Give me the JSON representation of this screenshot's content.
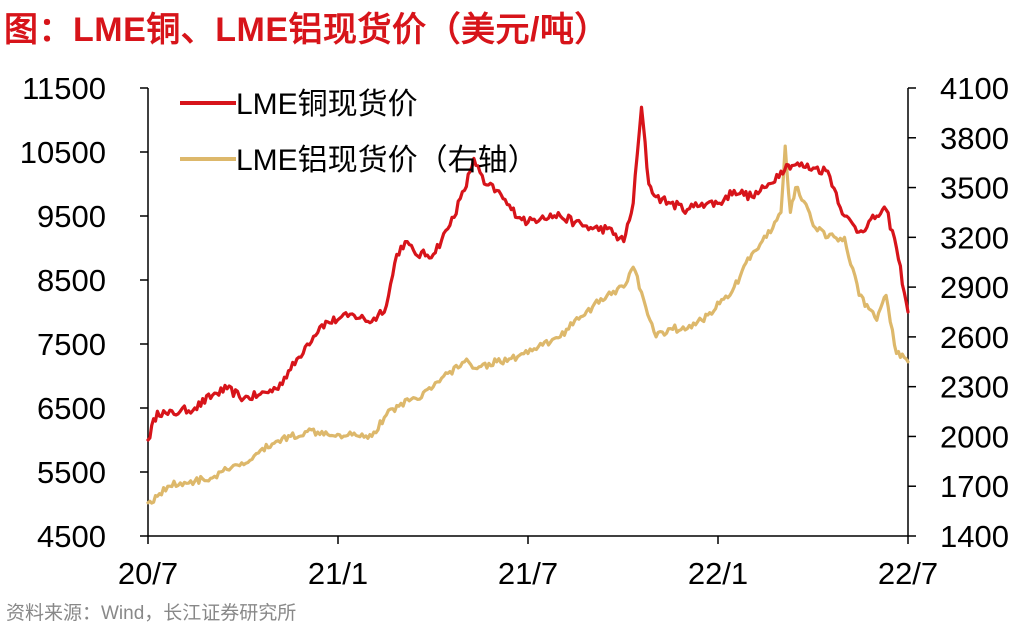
{
  "figure_title": "图：LME铜、LME铝现货价（美元/吨）",
  "source": "资料来源：Wind，长江证券研究所",
  "colors": {
    "copper": "#d7141a",
    "aluminum": "#ddb86b",
    "axis": "#000000"
  },
  "chart_data": {
    "type": "line",
    "title": "图：LME铜、LME铝现货价（美元/吨）",
    "x_tick_labels": [
      "20/7",
      "21/1",
      "21/7",
      "22/1",
      "22/7"
    ],
    "x_range": [
      "2020-07",
      "2022-07"
    ],
    "y_left": {
      "range": [
        4500,
        11500
      ],
      "ticks": [
        4500,
        5500,
        6500,
        7500,
        8500,
        9500,
        10500,
        11500
      ]
    },
    "y_right": {
      "range": [
        1400,
        4100
      ],
      "ticks": [
        1400,
        1700,
        2000,
        2300,
        2600,
        2900,
        3200,
        3500,
        3800,
        4100
      ]
    },
    "legend_position": "top-left",
    "grid": false,
    "series": [
      {
        "name": "LME铜现货价",
        "axis": "left",
        "color": "#d7141a",
        "x": [
          "2020-07-01",
          "2020-07-10",
          "2020-07-20",
          "2020-08-01",
          "2020-08-15",
          "2020-09-01",
          "2020-09-15",
          "2020-10-01",
          "2020-10-15",
          "2020-11-01",
          "2020-11-15",
          "2020-12-01",
          "2020-12-15",
          "2021-01-01",
          "2021-01-15",
          "2021-02-01",
          "2021-02-15",
          "2021-02-25",
          "2021-03-05",
          "2021-03-15",
          "2021-04-01",
          "2021-04-15",
          "2021-05-01",
          "2021-05-10",
          "2021-05-20",
          "2021-06-01",
          "2021-06-15",
          "2021-07-01",
          "2021-07-15",
          "2021-08-01",
          "2021-08-15",
          "2021-09-01",
          "2021-09-15",
          "2021-10-01",
          "2021-10-10",
          "2021-10-18",
          "2021-10-25",
          "2021-11-01",
          "2021-11-15",
          "2021-12-01",
          "2021-12-15",
          "2022-01-01",
          "2022-01-15",
          "2022-02-01",
          "2022-02-15",
          "2022-03-01",
          "2022-03-08",
          "2022-03-15",
          "2022-04-01",
          "2022-04-15",
          "2022-05-01",
          "2022-05-15",
          "2022-06-01",
          "2022-06-10",
          "2022-06-20",
          "2022-07-01"
        ],
        "values": [
          6000,
          6450,
          6400,
          6450,
          6500,
          6700,
          6800,
          6650,
          6700,
          6800,
          7100,
          7500,
          7800,
          7900,
          7950,
          7850,
          8100,
          8900,
          9100,
          8900,
          8900,
          9300,
          9900,
          10400,
          10000,
          9900,
          9600,
          9400,
          9500,
          9500,
          9400,
          9300,
          9300,
          9100,
          9700,
          11200,
          10000,
          9800,
          9700,
          9600,
          9700,
          9700,
          9900,
          9800,
          9950,
          10200,
          10300,
          10300,
          10250,
          10200,
          9500,
          9250,
          9500,
          9600,
          9000,
          8000
        ]
      },
      {
        "name": "LME铝现货价（右轴）",
        "axis": "right",
        "color": "#ddb86b",
        "x": [
          "2020-07-01",
          "2020-07-10",
          "2020-07-20",
          "2020-08-01",
          "2020-08-15",
          "2020-09-01",
          "2020-09-15",
          "2020-10-01",
          "2020-10-15",
          "2020-11-01",
          "2020-11-15",
          "2020-12-01",
          "2020-12-15",
          "2021-01-01",
          "2021-01-15",
          "2021-02-01",
          "2021-02-15",
          "2021-03-01",
          "2021-03-15",
          "2021-04-01",
          "2021-04-15",
          "2021-05-01",
          "2021-05-15",
          "2021-06-01",
          "2021-06-15",
          "2021-07-01",
          "2021-07-15",
          "2021-08-01",
          "2021-08-15",
          "2021-09-01",
          "2021-09-15",
          "2021-10-01",
          "2021-10-10",
          "2021-10-18",
          "2021-11-01",
          "2021-11-15",
          "2021-12-01",
          "2021-12-15",
          "2022-01-01",
          "2022-01-15",
          "2022-02-01",
          "2022-02-15",
          "2022-03-01",
          "2022-03-05",
          "2022-03-10",
          "2022-03-15",
          "2022-03-25",
          "2022-04-01",
          "2022-04-15",
          "2022-05-01",
          "2022-05-15",
          "2022-06-01",
          "2022-06-10",
          "2022-06-20",
          "2022-07-01"
        ],
        "values": [
          1600,
          1640,
          1700,
          1720,
          1730,
          1750,
          1800,
          1830,
          1900,
          1970,
          2000,
          2030,
          2030,
          2010,
          2020,
          2000,
          2130,
          2200,
          2230,
          2300,
          2380,
          2450,
          2420,
          2450,
          2470,
          2500,
          2550,
          2600,
          2700,
          2780,
          2850,
          2900,
          3020,
          2870,
          2600,
          2650,
          2650,
          2700,
          2800,
          2900,
          3100,
          3200,
          3350,
          3750,
          3350,
          3500,
          3400,
          3270,
          3200,
          3200,
          2850,
          2700,
          2850,
          2500,
          2450
        ]
      }
    ]
  }
}
